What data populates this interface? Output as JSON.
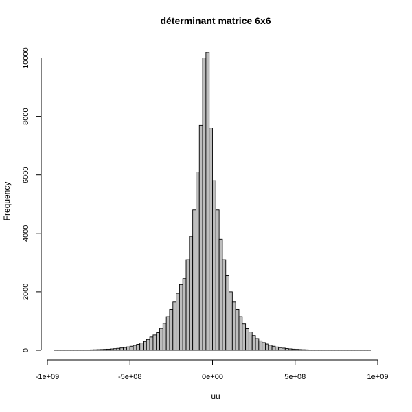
{
  "chart_data": {
    "type": "bar",
    "title": "déterminant matrice 6x6",
    "xlabel": "uu",
    "ylabel": "Frequency",
    "xlim": [
      -1000000000,
      1000000000
    ],
    "ylim": [
      0,
      10200
    ],
    "x_ticks": [
      -1000000000,
      -500000000,
      0,
      500000000,
      1000000000
    ],
    "x_tick_labels": [
      "-1e+09",
      "-5e+08",
      "0e+00",
      "5e+08",
      "1e+09"
    ],
    "y_ticks": [
      0,
      2000,
      4000,
      6000,
      8000,
      10000
    ],
    "y_tick_labels": [
      "0",
      "2000",
      "4000",
      "6000",
      "8000",
      "10000"
    ],
    "bin_width": 20000000,
    "bin_start": -960000000,
    "values": [
      3,
      4,
      5,
      5,
      6,
      7,
      8,
      9,
      10,
      11,
      13,
      15,
      18,
      22,
      26,
      31,
      37,
      45,
      54,
      65,
      78,
      94,
      113,
      135,
      165,
      200,
      245,
      300,
      370,
      450,
      520,
      600,
      750,
      920,
      1150,
      1400,
      1650,
      1950,
      2250,
      2450,
      3100,
      3900,
      4800,
      6100,
      7700,
      10000,
      10200,
      7600,
      5800,
      4800,
      3800,
      3100,
      2550,
      2000,
      1650,
      1400,
      1150,
      900,
      740,
      620,
      500,
      400,
      320,
      260,
      210,
      170,
      135,
      110,
      90,
      72,
      58,
      47,
      38,
      31,
      25,
      20,
      16,
      13,
      10,
      8,
      7,
      6,
      5,
      4,
      4,
      3,
      3,
      3,
      2,
      2,
      2,
      2,
      2,
      2,
      2,
      1
    ]
  }
}
